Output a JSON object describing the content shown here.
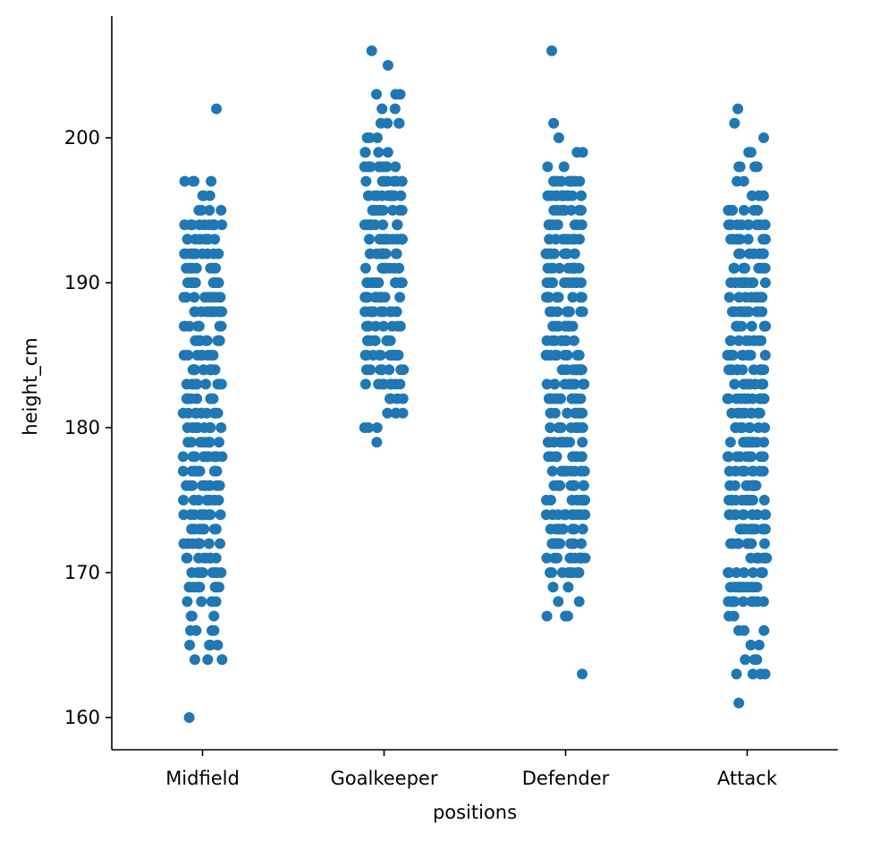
{
  "chart_data": {
    "type": "scatter",
    "subtype": "strip",
    "title": "",
    "xlabel": "positions",
    "ylabel": "height_cm",
    "categories": [
      "Midfield",
      "Goalkeeper",
      "Defender",
      "Attack"
    ],
    "ylim": [
      157.9,
      208.4
    ],
    "yticks": [
      160,
      170,
      180,
      190,
      200
    ],
    "grid": false,
    "legend": "none",
    "color": "#1f77b4",
    "series": [
      {
        "category": "Midfield",
        "range": [
          164,
          197
        ],
        "outliers": [
          160,
          202
        ],
        "sparse": [
          164,
          165,
          166,
          167,
          168,
          195,
          196,
          197
        ]
      },
      {
        "category": "Goalkeeper",
        "range": [
          180,
          203
        ],
        "outliers": [
          179,
          205,
          206
        ],
        "sparse": [
          180,
          181,
          182,
          199,
          200,
          201,
          202,
          203
        ]
      },
      {
        "category": "Defender",
        "range": [
          167,
          199
        ],
        "outliers": [
          163,
          200,
          201,
          206
        ],
        "sparse": [
          167,
          168,
          169,
          198,
          199
        ]
      },
      {
        "category": "Attack",
        "range": [
          163,
          199
        ],
        "outliers": [
          161,
          200,
          201,
          202
        ],
        "sparse": [
          163,
          164,
          165,
          166,
          167,
          196,
          197,
          198,
          199
        ]
      }
    ]
  }
}
